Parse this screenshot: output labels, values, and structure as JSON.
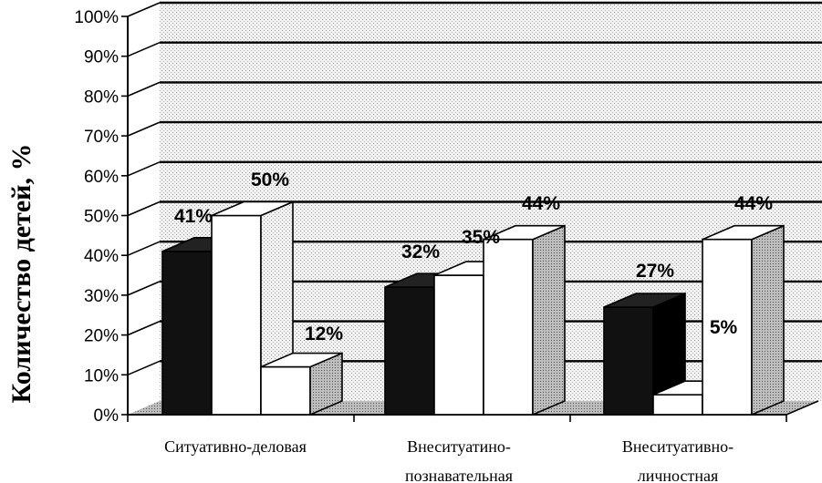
{
  "chart_data": {
    "type": "bar",
    "title": "",
    "xlabel": "",
    "ylabel": "Количество детей, %",
    "ylim": [
      0,
      100
    ],
    "yticks": [
      "0%",
      "10%",
      "20%",
      "30%",
      "40%",
      "50%",
      "60%",
      "70%",
      "80%",
      "90%",
      "100%"
    ],
    "categories": [
      [
        "Ситуативно-деловая"
      ],
      [
        "Внеситуатино-",
        "познавательная"
      ],
      [
        "Внеситуативно-",
        "личностная"
      ]
    ],
    "series": [
      {
        "values": [
          41,
          32,
          27
        ],
        "labels": [
          "41%",
          "32%",
          "27%"
        ],
        "color": "#111111"
      },
      {
        "values": [
          50,
          35,
          5
        ],
        "labels": [
          "50%",
          "35%",
          "5%"
        ],
        "color": "#ffffff"
      },
      {
        "values": [
          12,
          44,
          44
        ],
        "labels": [
          "12%",
          "44%",
          "44%"
        ],
        "color": "#ffffff"
      }
    ],
    "grid": true,
    "legend": "none",
    "style": "3d"
  }
}
